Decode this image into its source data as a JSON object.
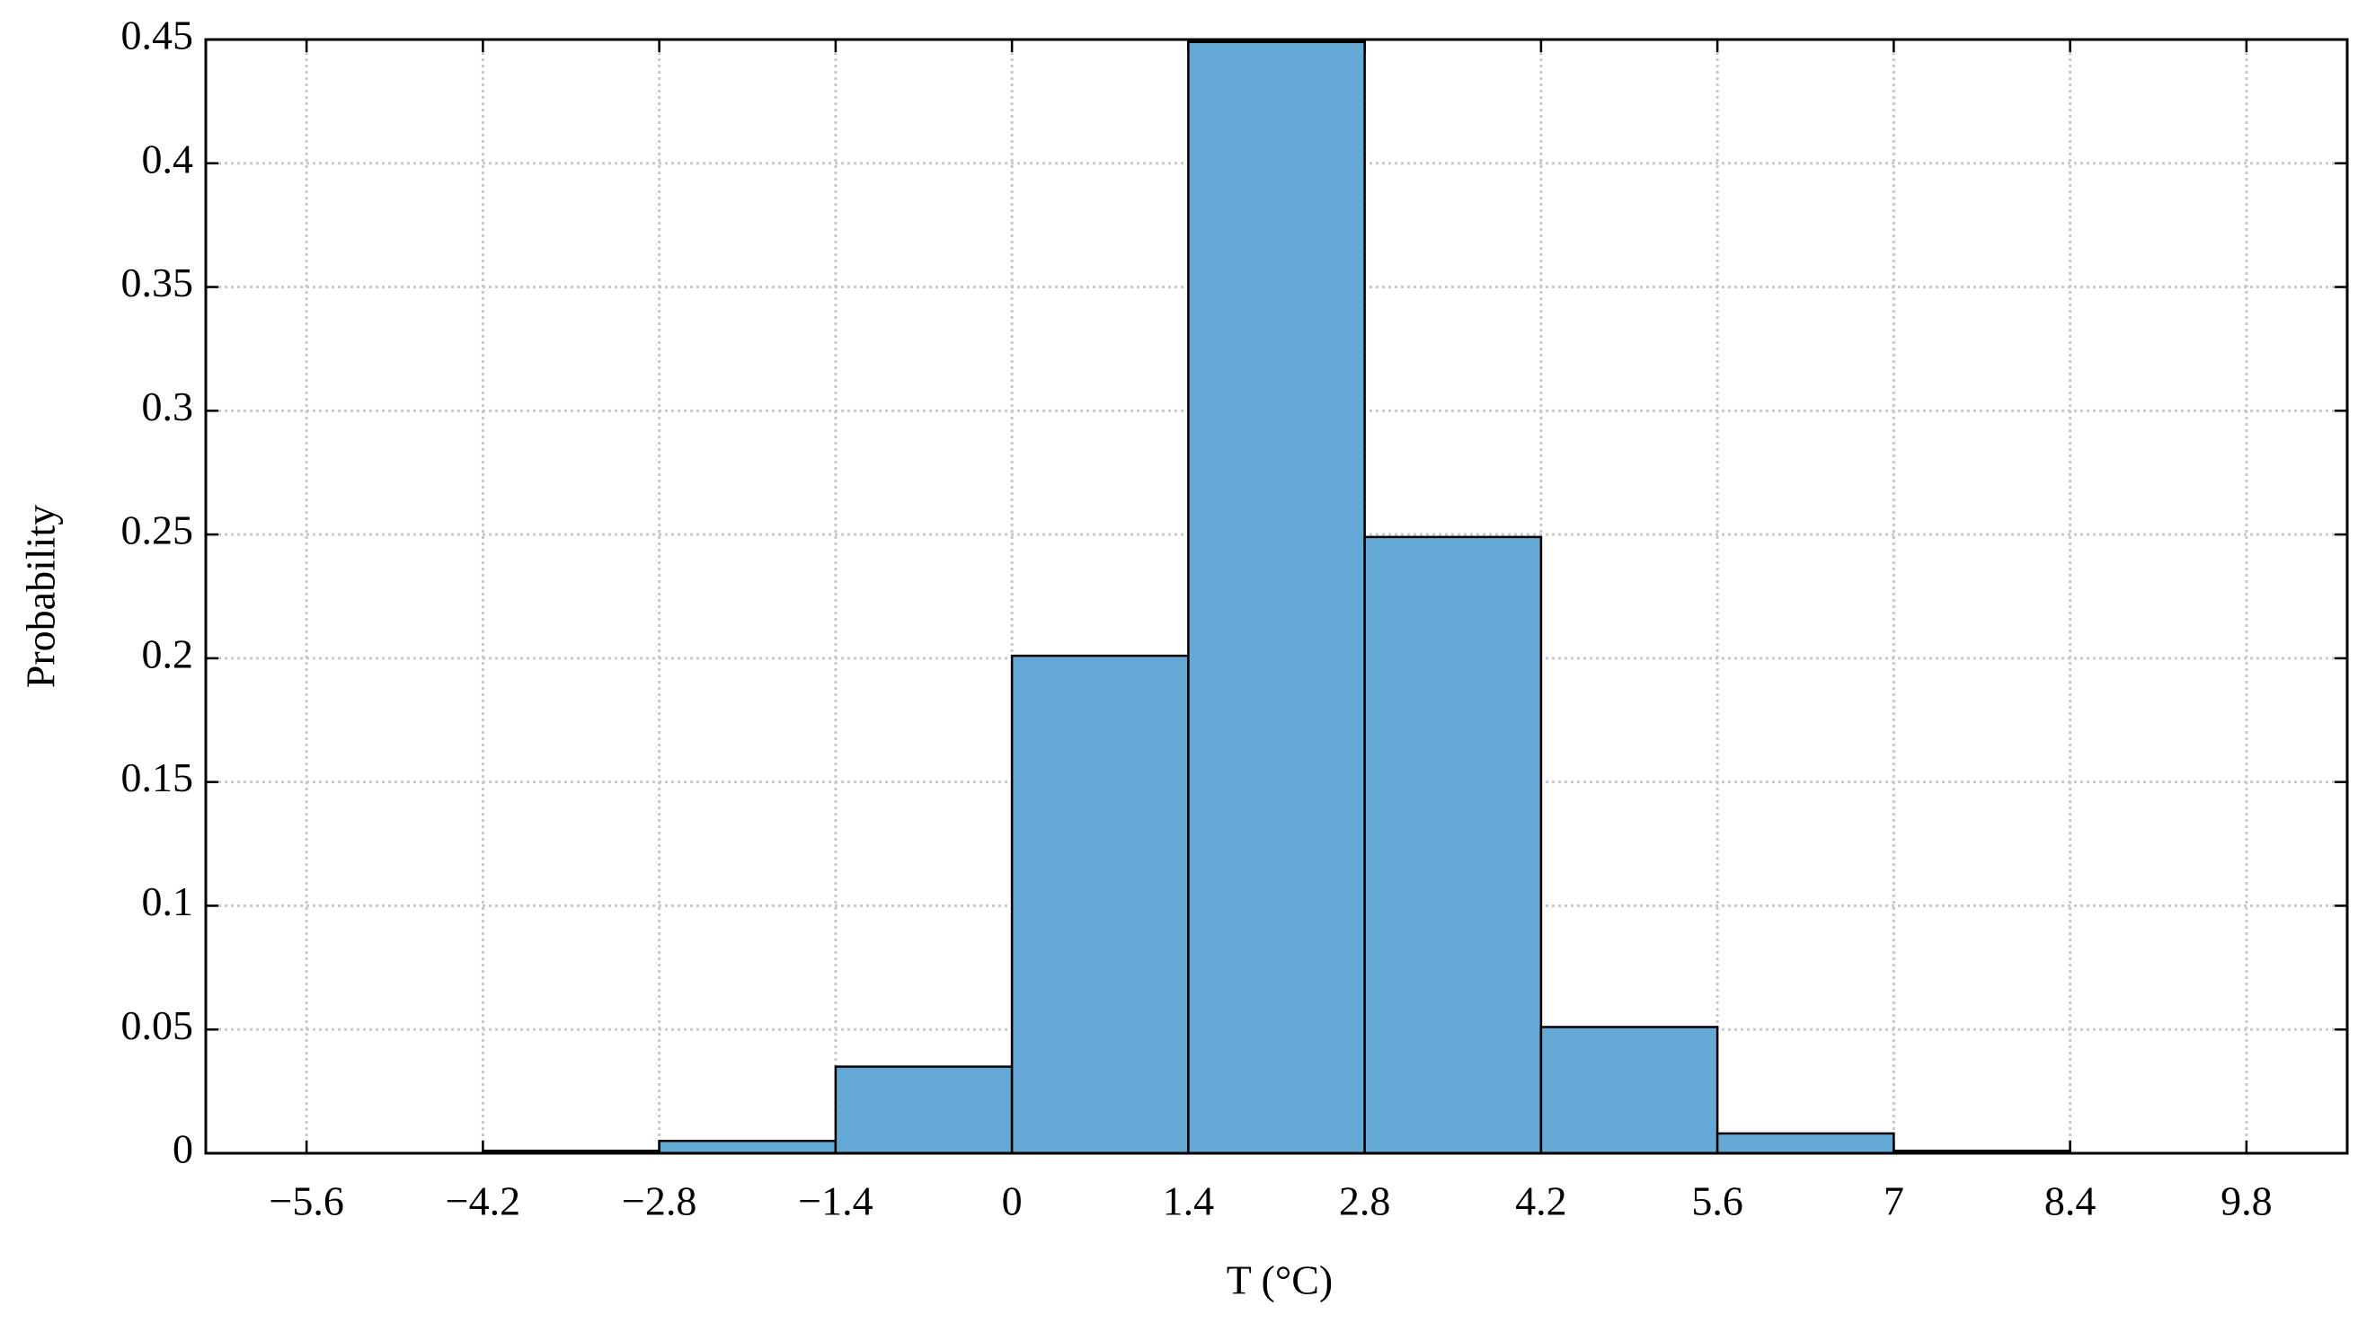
{
  "chart_data": {
    "type": "histogram",
    "xlabel": "T (°C)",
    "ylabel": "Probability",
    "bins": [
      -4.2,
      -2.8,
      -1.4,
      0,
      1.4,
      2.8,
      4.2,
      5.6,
      7,
      8.4
    ],
    "values": [
      0.001,
      0.005,
      0.035,
      0.201,
      0.449,
      0.249,
      0.051,
      0.008,
      0.001
    ],
    "color": "#64a8d6",
    "edgecolor": "#000000",
    "xlim": [
      -6.4,
      10.6
    ],
    "ylim": [
      0,
      0.45
    ],
    "xticks": [
      {
        "value": -5.6,
        "label": "−5.6"
      },
      {
        "value": -4.2,
        "label": "−4.2"
      },
      {
        "value": -2.8,
        "label": "−2.8"
      },
      {
        "value": -1.4,
        "label": "−1.4"
      },
      0,
      1.4,
      2.8,
      4.2,
      5.6,
      7,
      8.4,
      9.8
    ],
    "yticks": [
      0,
      0.05,
      0.1,
      0.15,
      0.2,
      0.25,
      0.3,
      0.35,
      0.4,
      0.45
    ],
    "grid": true
  }
}
